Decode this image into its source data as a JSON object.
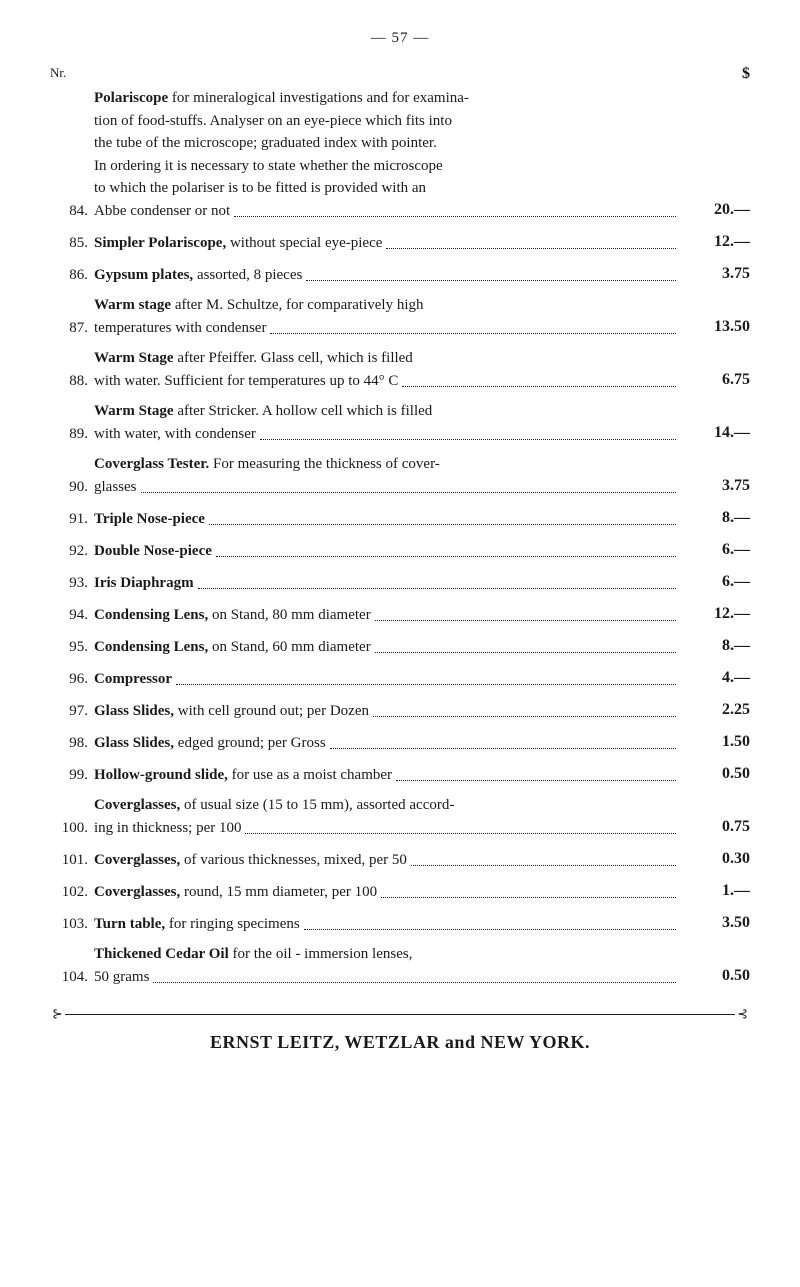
{
  "pageNumber": "— 57 —",
  "columnHeader": {
    "left": "Nr.",
    "right": "$"
  },
  "items": [
    {
      "num": "84.",
      "lines": [
        "<b>Polariscope</b> for mineralogical investigations and for examina-",
        "tion of food-stuffs. Analyser on an eye-piece which fits into",
        "the tube of the microscope; graduated index with pointer.",
        "In ordering it is necessary to state whether the microscope",
        "to which the polariser is to be fitted is provided with an"
      ],
      "last": "Abbe condenser or not",
      "price": "20.—"
    },
    {
      "num": "85.",
      "lines": [],
      "last": "<b>Simpler Polariscope,</b> without special eye-piece",
      "price": "12.—"
    },
    {
      "num": "86.",
      "lines": [],
      "last": "<b>Gypsum plates,</b> assorted, 8 pieces",
      "price": "3.75"
    },
    {
      "num": "87.",
      "lines": [
        "<b>Warm stage</b> after M. Schultze, for comparatively high"
      ],
      "last": "temperatures with condenser",
      "price": "13.50"
    },
    {
      "num": "88.",
      "lines": [
        "<b>Warm Stage</b> after Pfeiffer. Glass cell, which is filled"
      ],
      "last": "with water. Sufficient for temperatures up to 44° C",
      "price": "6.75"
    },
    {
      "num": "89.",
      "lines": [
        "<b>Warm Stage</b> after Stricker. A hollow cell which is filled"
      ],
      "last": "with water, with condenser",
      "price": "14.—"
    },
    {
      "num": "90.",
      "lines": [
        "<b>Coverglass Tester.</b> For measuring the thickness of cover-"
      ],
      "last": "glasses",
      "price": "3.75"
    },
    {
      "num": "91.",
      "lines": [],
      "last": "<b>Triple Nose-piece</b>",
      "price": "8.—"
    },
    {
      "num": "92.",
      "lines": [],
      "last": "<b>Double Nose-piece</b>",
      "price": "6.—"
    },
    {
      "num": "93.",
      "lines": [],
      "last": "<b>Iris Diaphragm</b>",
      "price": "6.—"
    },
    {
      "num": "94.",
      "lines": [],
      "last": "<b>Condensing Lens,</b> on Stand, 80 mm diameter",
      "price": "12.—"
    },
    {
      "num": "95.",
      "lines": [],
      "last": "<b>Condensing Lens,</b> on Stand, 60 mm diameter",
      "price": "8.—"
    },
    {
      "num": "96.",
      "lines": [],
      "last": "<b>Compressor</b>",
      "price": "4.—"
    },
    {
      "num": "97.",
      "lines": [],
      "last": "<b>Glass Slides,</b> with cell ground out; per Dozen",
      "price": "2.25"
    },
    {
      "num": "98.",
      "lines": [],
      "last": "<b>Glass Slides,</b> edged ground; per Gross",
      "price": "1.50"
    },
    {
      "num": "99.",
      "lines": [],
      "last": "<b>Hollow-ground slide,</b> for use as a moist chamber",
      "price": "0.50"
    },
    {
      "num": "100.",
      "lines": [
        "<b>Coverglasses,</b> of usual size (15 to 15 mm), assorted accord-"
      ],
      "last": "ing in thickness; per 100",
      "price": "0.75"
    },
    {
      "num": "101.",
      "lines": [],
      "last": "<b>Coverglasses,</b> of various thicknesses, mixed, per 50",
      "price": "0.30"
    },
    {
      "num": "102.",
      "lines": [],
      "last": "<b>Coverglasses,</b> round, 15 mm diameter, per 100",
      "price": "1.—"
    },
    {
      "num": "103.",
      "lines": [],
      "last": "<b>Turn table,</b> for ringing specimens",
      "price": "3.50"
    },
    {
      "num": "104.",
      "lines": [
        "<b>Thickened Cedar Oil</b> for the oil - immersion lenses,"
      ],
      "last": "50 grams",
      "price": "0.50"
    }
  ],
  "footer": "ERNST LEITZ, WETZLAR and NEW YORK.",
  "ornament": "⊰"
}
